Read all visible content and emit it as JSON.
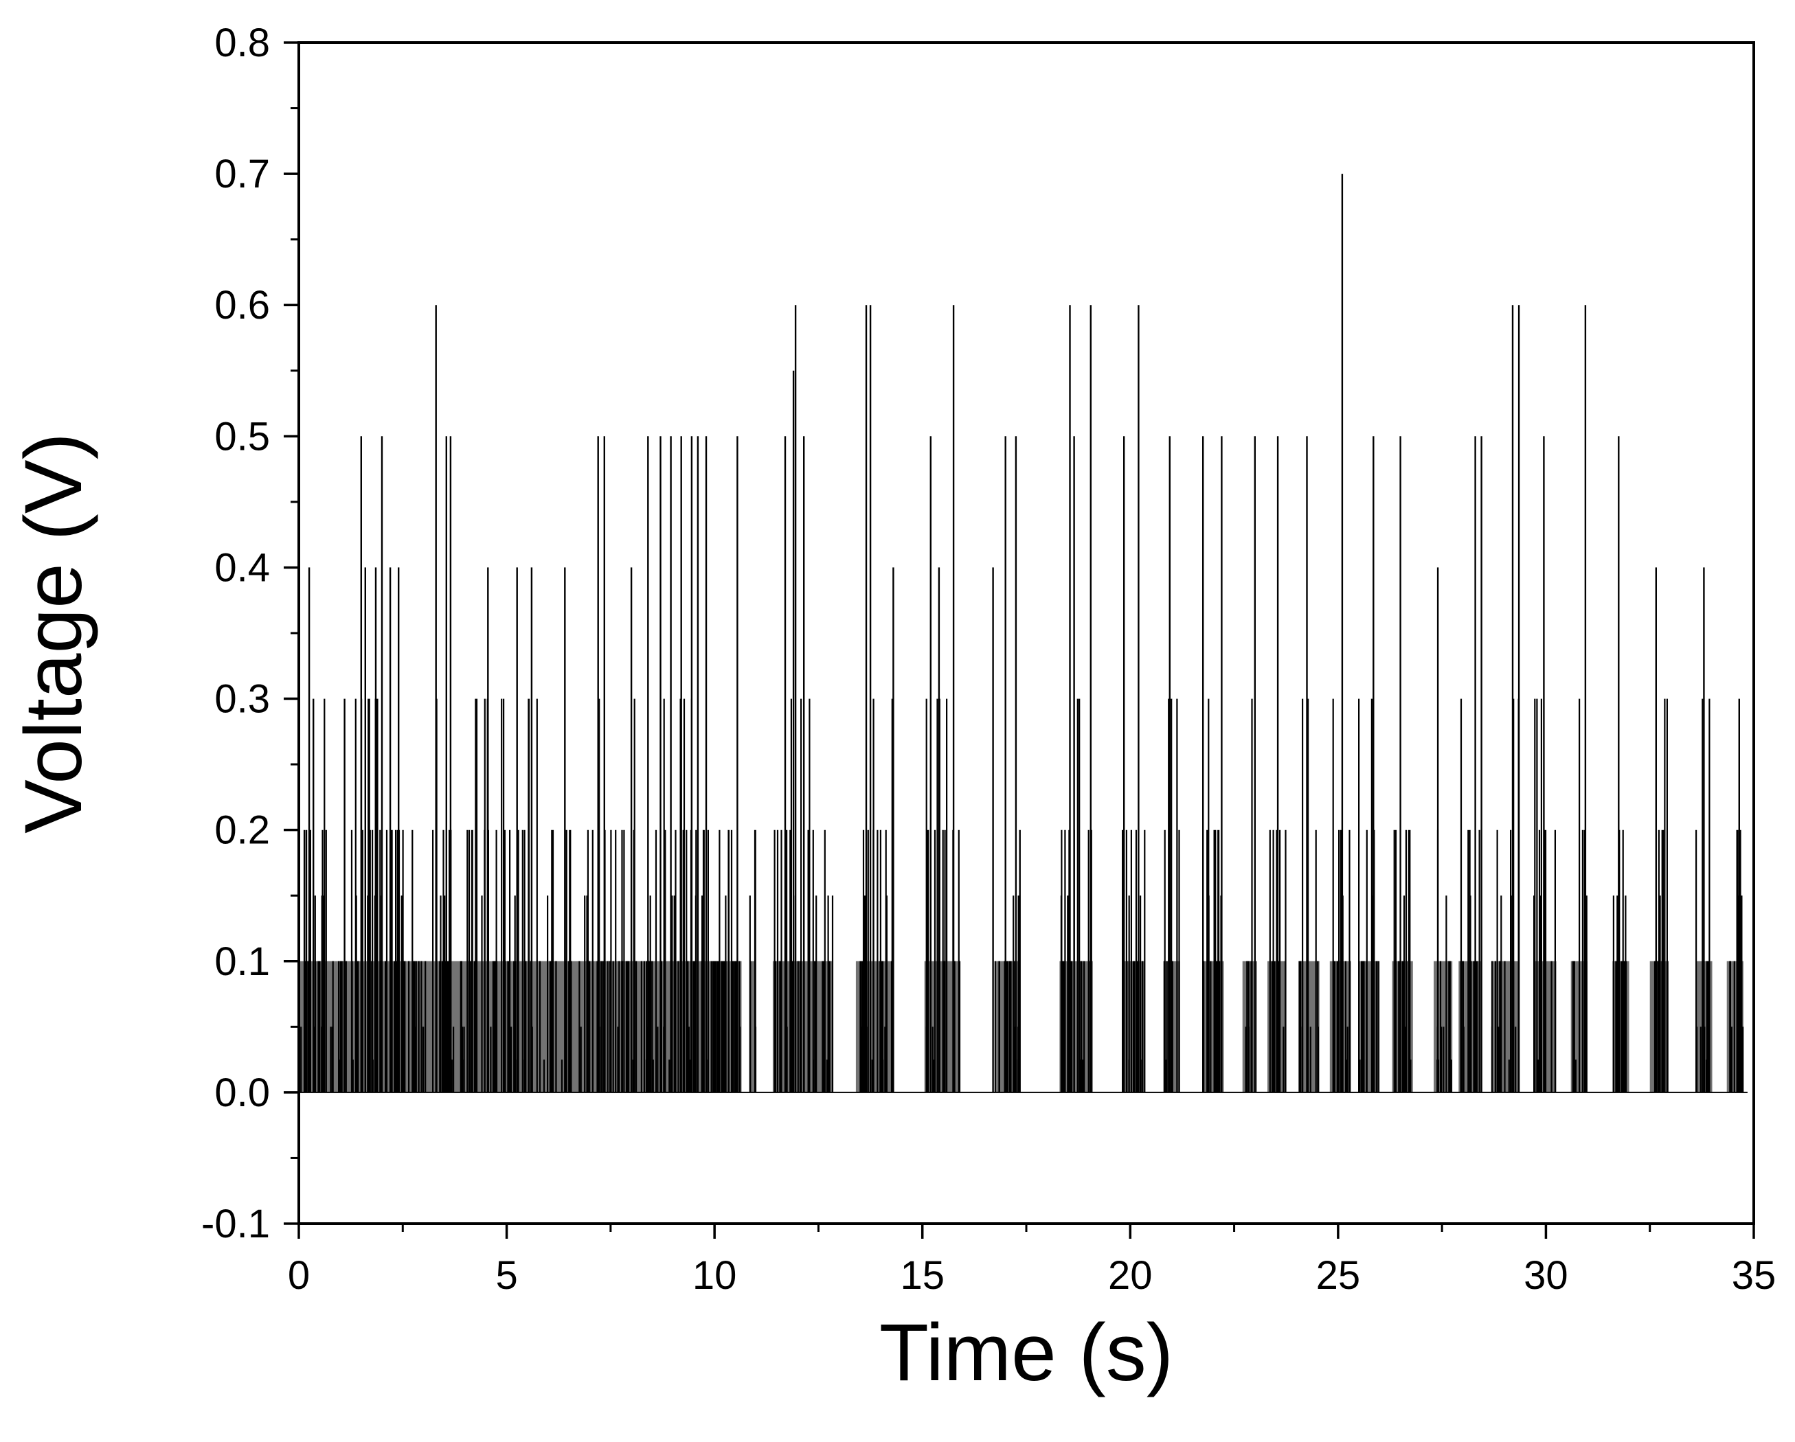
{
  "chart_data": {
    "type": "line",
    "title": "",
    "xlabel": "Time (s)",
    "ylabel": "Voltage (V)",
    "xlim": [
      0,
      35
    ],
    "ylim": [
      -0.1,
      0.8
    ],
    "x_major_ticks": [
      0,
      5,
      10,
      15,
      20,
      25,
      30,
      35
    ],
    "x_tick_labels": [
      "0",
      "5",
      "10",
      "15",
      "20",
      "25",
      "30",
      "35"
    ],
    "y_major_ticks": [
      -0.1,
      0.0,
      0.1,
      0.2,
      0.3,
      0.4,
      0.5,
      0.6,
      0.7,
      0.8
    ],
    "y_tick_labels": [
      "-0.1",
      "0.0",
      "0.1",
      "0.2",
      "0.3",
      "0.4",
      "0.5",
      "0.6",
      "0.7",
      "0.8"
    ],
    "grid": false,
    "legend": "none",
    "line_color": "#000000",
    "series": [
      {
        "burst_windows": [
          [
            0.0,
            10.65
          ],
          [
            10.85,
            11.0
          ],
          [
            11.4,
            12.85
          ],
          [
            13.4,
            14.3
          ],
          [
            15.05,
            15.9
          ],
          [
            16.75,
            17.35
          ],
          [
            18.3,
            19.1
          ],
          [
            19.8,
            20.35
          ],
          [
            20.8,
            21.2
          ],
          [
            21.75,
            22.25
          ],
          [
            22.7,
            23.05
          ],
          [
            23.3,
            23.75
          ],
          [
            24.05,
            24.55
          ],
          [
            24.8,
            25.3
          ],
          [
            25.5,
            26.0
          ],
          [
            26.3,
            26.8
          ],
          [
            27.3,
            27.75
          ],
          [
            27.9,
            28.45
          ],
          [
            28.7,
            29.35
          ],
          [
            29.7,
            30.25
          ],
          [
            30.6,
            31.0
          ],
          [
            31.6,
            32.0
          ],
          [
            32.5,
            32.95
          ],
          [
            33.6,
            34.0
          ],
          [
            34.35,
            34.75
          ]
        ],
        "peaks": [
          [
            0.25,
            0.4
          ],
          [
            0.35,
            0.3
          ],
          [
            1.1,
            0.3
          ],
          [
            1.5,
            0.5
          ],
          [
            1.6,
            0.4
          ],
          [
            1.85,
            0.4
          ],
          [
            2.0,
            0.5
          ],
          [
            2.2,
            0.4
          ],
          [
            2.4,
            0.4
          ],
          [
            3.3,
            0.6
          ],
          [
            3.55,
            0.5
          ],
          [
            3.65,
            0.5
          ],
          [
            4.55,
            0.4
          ],
          [
            5.25,
            0.4
          ],
          [
            5.6,
            0.4
          ],
          [
            6.4,
            0.4
          ],
          [
            7.2,
            0.5
          ],
          [
            7.35,
            0.5
          ],
          [
            8.0,
            0.4
          ],
          [
            8.4,
            0.5
          ],
          [
            8.7,
            0.5
          ],
          [
            8.95,
            0.5
          ],
          [
            9.2,
            0.5
          ],
          [
            9.45,
            0.5
          ],
          [
            9.6,
            0.5
          ],
          [
            9.8,
            0.5
          ],
          [
            10.55,
            0.5
          ],
          [
            11.7,
            0.5
          ],
          [
            11.9,
            0.55
          ],
          [
            11.95,
            0.6
          ],
          [
            12.15,
            0.5
          ],
          [
            13.65,
            0.6
          ],
          [
            13.75,
            0.6
          ],
          [
            14.3,
            0.4
          ],
          [
            15.2,
            0.5
          ],
          [
            15.4,
            0.4
          ],
          [
            15.75,
            0.6
          ],
          [
            16.7,
            0.4
          ],
          [
            17.0,
            0.5
          ],
          [
            17.25,
            0.5
          ],
          [
            18.55,
            0.6
          ],
          [
            18.65,
            0.5
          ],
          [
            19.05,
            0.6
          ],
          [
            19.85,
            0.5
          ],
          [
            20.2,
            0.6
          ],
          [
            20.95,
            0.5
          ],
          [
            21.75,
            0.5
          ],
          [
            22.2,
            0.5
          ],
          [
            23.0,
            0.5
          ],
          [
            23.55,
            0.5
          ],
          [
            24.25,
            0.5
          ],
          [
            25.1,
            0.7
          ],
          [
            25.85,
            0.5
          ],
          [
            26.5,
            0.5
          ],
          [
            27.4,
            0.4
          ],
          [
            28.3,
            0.5
          ],
          [
            28.45,
            0.5
          ],
          [
            29.2,
            0.6
          ],
          [
            29.35,
            0.6
          ],
          [
            29.95,
            0.5
          ],
          [
            30.95,
            0.6
          ],
          [
            31.75,
            0.5
          ],
          [
            32.65,
            0.4
          ],
          [
            33.8,
            0.4
          ],
          [
            34.65,
            0.3
          ]
        ]
      }
    ]
  }
}
